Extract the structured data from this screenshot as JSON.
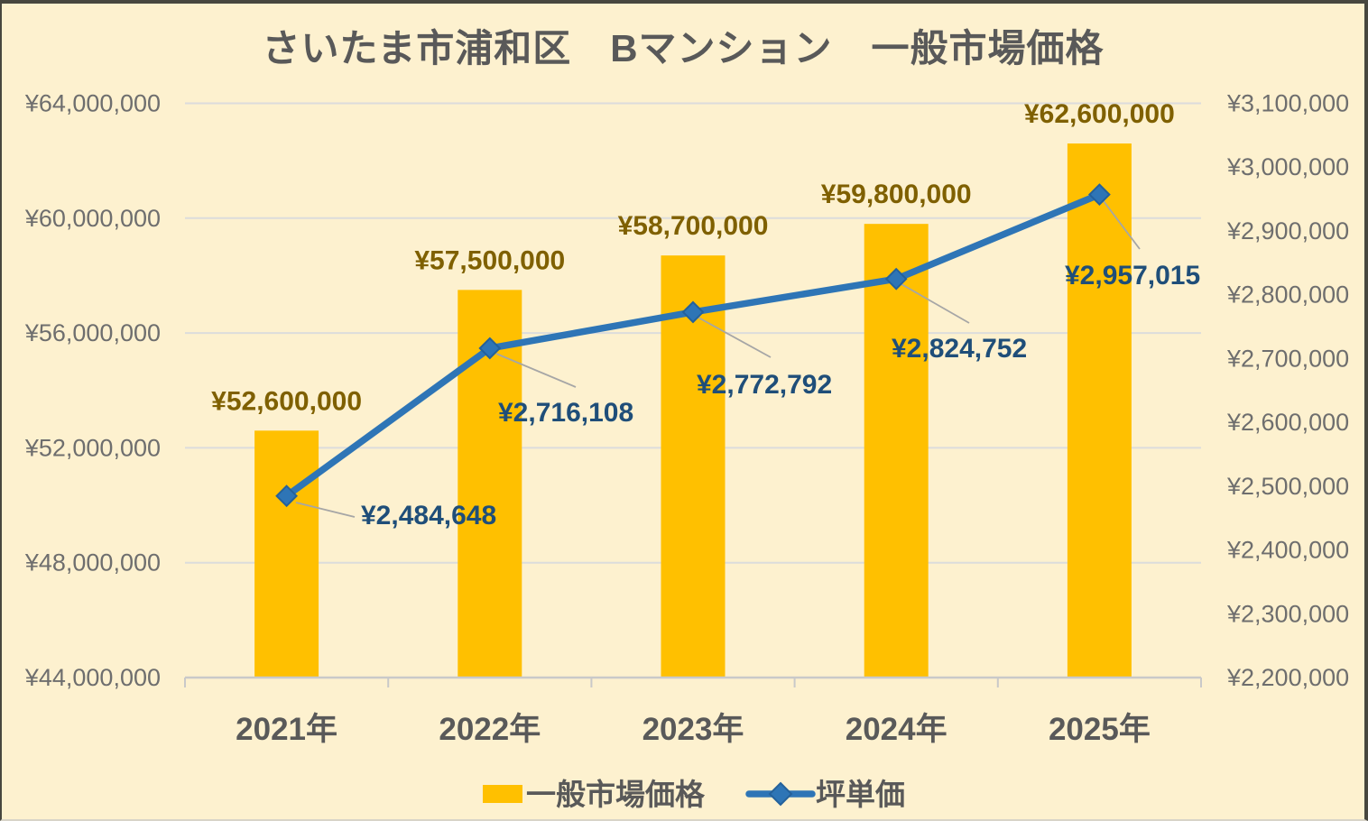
{
  "title": "さいたま市浦和区　Bマンション　一般市場価格",
  "colors": {
    "background": "#FDF1CF",
    "frame_border": "#47473F",
    "bar": "#FFC000",
    "line": "#2E75B6",
    "marker_edge": "#24619B",
    "bar_label": "#7F6000",
    "line_label": "#1F4E79",
    "title_text": "#595959",
    "tick_text": "#6E6E6E",
    "gridline": "#DCDCDC",
    "axis_line": "#C9C9C9",
    "leader_line": "#A6A6A6"
  },
  "chart_data": {
    "type": "combo (bar + line, dual axis)",
    "title": "さいたま市浦和区　Bマンション　一般市場価格",
    "categories": [
      "2021年",
      "2022年",
      "2023年",
      "2024年",
      "2025年"
    ],
    "series": [
      {
        "name": "一般市場価格",
        "chart": "bar",
        "axis": "left",
        "values": [
          52600000,
          57500000,
          58700000,
          59800000,
          62600000
        ],
        "data_labels": [
          "¥52,600,000",
          "¥57,500,000",
          "¥58,700,000",
          "¥59,800,000",
          "¥62,600,000"
        ]
      },
      {
        "name": "坪単価",
        "chart": "line",
        "axis": "right",
        "values": [
          2484648,
          2716108,
          2772792,
          2824752,
          2957015
        ],
        "data_labels": [
          "¥2,484,648",
          "¥2,716,108",
          "¥2,772,792",
          "¥2,824,752",
          "¥2,957,015"
        ]
      }
    ],
    "left_axis": {
      "min": 44000000,
      "max": 64000000,
      "step": 4000000,
      "tick_labels": [
        "¥64,000,000",
        "¥60,000,000",
        "¥56,000,000",
        "¥52,000,000",
        "¥48,000,000",
        "¥44,000,000"
      ]
    },
    "right_axis": {
      "min": 2200000,
      "max": 3100000,
      "step": 100000,
      "tick_labels": [
        "¥3,100,000",
        "¥3,000,000",
        "¥2,900,000",
        "¥2,800,000",
        "¥2,700,000",
        "¥2,600,000",
        "¥2,500,000",
        "¥2,400,000",
        "¥2,300,000",
        "¥2,200,000"
      ]
    },
    "legend_position": "bottom",
    "grid": "horizontal"
  }
}
